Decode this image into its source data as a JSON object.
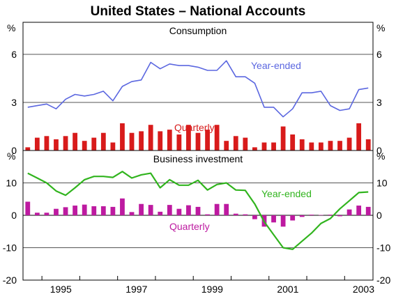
{
  "title": "United States – National Accounts",
  "x_ticks": [
    "1995",
    "1997",
    "1999",
    "2001",
    "2003"
  ],
  "chart_data": [
    {
      "type": "bar+line",
      "title": "Consumption",
      "unit_left": "%",
      "unit_right": "%",
      "ylim": [
        0,
        8
      ],
      "y_ticks": [
        "6",
        "3",
        "0"
      ],
      "series": [
        {
          "name": "Quarterly",
          "type": "bar",
          "color": "#d81b1b",
          "x": [
            "1994Q3",
            "1994Q4",
            "1995Q1",
            "1995Q2",
            "1995Q3",
            "1995Q4",
            "1996Q1",
            "1996Q2",
            "1996Q3",
            "1996Q4",
            "1997Q1",
            "1997Q2",
            "1997Q3",
            "1997Q4",
            "1998Q1",
            "1998Q2",
            "1998Q3",
            "1998Q4",
            "1999Q1",
            "1999Q2",
            "1999Q3",
            "1999Q4",
            "2000Q1",
            "2000Q2",
            "2000Q3",
            "2000Q4",
            "2001Q1",
            "2001Q2",
            "2001Q3",
            "2001Q4",
            "2002Q1",
            "2002Q2",
            "2002Q3",
            "2002Q4",
            "2003Q1",
            "2003Q2",
            "2003Q3"
          ],
          "values": [
            0.2,
            0.8,
            0.9,
            0.7,
            0.9,
            1.1,
            0.6,
            0.8,
            1.1,
            0.5,
            1.7,
            1.1,
            1.2,
            1.6,
            1.2,
            1.3,
            1.0,
            1.6,
            1.1,
            1.3,
            1.6,
            0.6,
            0.9,
            0.8,
            0.2,
            0.5,
            0.5,
            1.5,
            1.0,
            0.7,
            0.5,
            0.5,
            0.6,
            0.6,
            0.8,
            1.7,
            0.7
          ]
        },
        {
          "name": "Year-ended",
          "type": "line",
          "color": "#5b67e0",
          "x": [
            "1994Q3",
            "1994Q4",
            "1995Q1",
            "1995Q2",
            "1995Q3",
            "1995Q4",
            "1996Q1",
            "1996Q2",
            "1996Q3",
            "1996Q4",
            "1997Q1",
            "1997Q2",
            "1997Q3",
            "1997Q4",
            "1998Q1",
            "1998Q2",
            "1998Q3",
            "1998Q4",
            "1999Q1",
            "1999Q2",
            "1999Q3",
            "1999Q4",
            "2000Q1",
            "2000Q2",
            "2000Q3",
            "2000Q4",
            "2001Q1",
            "2001Q2",
            "2001Q3",
            "2001Q4",
            "2002Q1",
            "2002Q2",
            "2002Q3",
            "2002Q4",
            "2003Q1",
            "2003Q2",
            "2003Q3"
          ],
          "values": [
            2.7,
            2.8,
            2.9,
            2.6,
            3.2,
            3.5,
            3.4,
            3.5,
            3.7,
            3.1,
            4.0,
            4.3,
            4.4,
            5.5,
            5.1,
            5.4,
            5.3,
            5.3,
            5.2,
            5.0,
            5.0,
            5.6,
            4.6,
            4.6,
            4.2,
            2.7,
            2.7,
            2.1,
            2.6,
            3.6,
            3.6,
            3.7,
            2.8,
            2.5,
            2.6,
            3.8,
            3.9
          ]
        }
      ],
      "annotations": {
        "year_ended": "Year-ended",
        "quarterly": "Quarterly"
      }
    },
    {
      "type": "bar+line",
      "title": "Business investment",
      "unit_left": "%",
      "unit_right": "%",
      "ylim": [
        -20,
        20
      ],
      "y_ticks": [
        "10",
        "0",
        "-10",
        "-20"
      ],
      "series": [
        {
          "name": "Quarterly",
          "type": "bar",
          "color": "#bd1aa0",
          "x": [
            "1994Q3",
            "1994Q4",
            "1995Q1",
            "1995Q2",
            "1995Q3",
            "1995Q4",
            "1996Q1",
            "1996Q2",
            "1996Q3",
            "1996Q4",
            "1997Q1",
            "1997Q2",
            "1997Q3",
            "1997Q4",
            "1998Q1",
            "1998Q2",
            "1998Q3",
            "1998Q4",
            "1999Q1",
            "1999Q2",
            "1999Q3",
            "1999Q4",
            "2000Q1",
            "2000Q2",
            "2000Q3",
            "2000Q4",
            "2001Q1",
            "2001Q2",
            "2001Q3",
            "2001Q4",
            "2002Q1",
            "2002Q2",
            "2002Q3",
            "2002Q4",
            "2003Q1",
            "2003Q2",
            "2003Q3"
          ],
          "values": [
            4.2,
            0.8,
            0.8,
            2.0,
            2.5,
            3.0,
            3.3,
            2.8,
            2.8,
            2.6,
            5.2,
            1.0,
            3.5,
            3.2,
            1.1,
            3.2,
            2.0,
            3.1,
            2.6,
            0.3,
            3.5,
            3.5,
            0.5,
            0.3,
            -1.2,
            -3.5,
            -2.2,
            -3.5,
            -1.6,
            -0.5,
            0.2,
            0.1,
            0.2,
            -0.3,
            1.8,
            3.0,
            2.6
          ]
        },
        {
          "name": "Year-ended",
          "type": "line",
          "color": "#31b41e",
          "x": [
            "1994Q3",
            "1994Q4",
            "1995Q1",
            "1995Q2",
            "1995Q3",
            "1995Q4",
            "1996Q1",
            "1996Q2",
            "1996Q3",
            "1996Q4",
            "1997Q1",
            "1997Q2",
            "1997Q3",
            "1997Q4",
            "1998Q1",
            "1998Q2",
            "1998Q3",
            "1998Q4",
            "1999Q1",
            "1999Q2",
            "1999Q3",
            "1999Q4",
            "2000Q1",
            "2000Q2",
            "2000Q3",
            "2000Q4",
            "2001Q1",
            "2001Q2",
            "2001Q3",
            "2001Q4",
            "2002Q1",
            "2002Q2",
            "2002Q3",
            "2002Q4",
            "2003Q1",
            "2003Q2",
            "2003Q3"
          ],
          "values": [
            13.0,
            11.5,
            10.0,
            7.5,
            6.2,
            8.5,
            11.0,
            12.0,
            12.0,
            11.7,
            13.5,
            11.5,
            12.5,
            13.0,
            8.5,
            11.0,
            9.3,
            9.3,
            10.8,
            7.8,
            9.5,
            10.0,
            7.8,
            7.7,
            3.5,
            -2.0,
            -6.0,
            -10.0,
            -10.5,
            -8.0,
            -5.5,
            -2.5,
            -1.0,
            2.0,
            4.5,
            7.0,
            7.2
          ]
        }
      ],
      "annotations": {
        "year_ended": "Year-ended",
        "quarterly": "Quarterly"
      }
    }
  ]
}
